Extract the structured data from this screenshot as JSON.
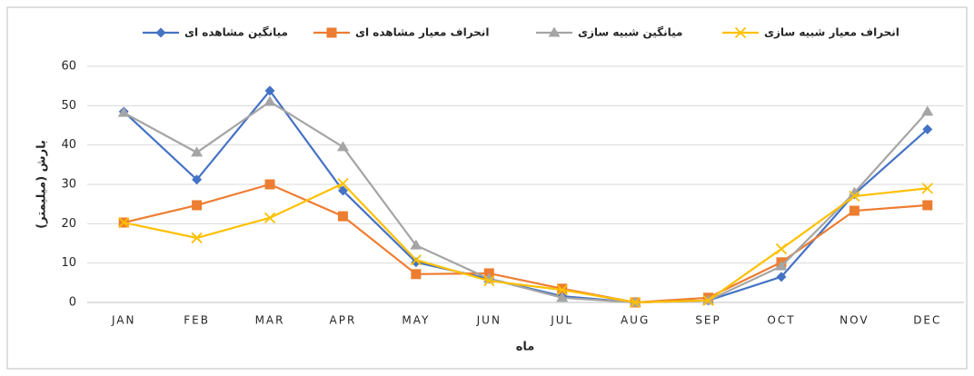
{
  "chart_data": {
    "type": "line",
    "x_label": "ماه",
    "y_label": "بارش (میلیمتر)",
    "categories": [
      "JAN",
      "FEB",
      "MAR",
      "APR",
      "MAY",
      "JUN",
      "JUL",
      "AUG",
      "SEP",
      "OCT",
      "NOV",
      "DEC"
    ],
    "series": [
      {
        "name": "میانگین مشاهده ای",
        "color": "#4472c4",
        "marker": "diamond",
        "values": [
          48.5,
          31.2,
          53.8,
          28.4,
          10.2,
          6.0,
          1.6,
          0,
          0.5,
          6.5,
          27.5,
          44
        ]
      },
      {
        "name": "انحراف معیار مشاهده  ای",
        "color": "#ed7d31",
        "marker": "square",
        "values": [
          20.3,
          24.7,
          30,
          21.9,
          7.2,
          7.4,
          3.5,
          0,
          1.2,
          10.2,
          23.3,
          24.7
        ]
      },
      {
        "name": "میانگین شبیه سازی",
        "color": "#a5a5a5",
        "marker": "triangle",
        "values": [
          48.2,
          38.1,
          51,
          39.5,
          14.5,
          6.0,
          1.2,
          0,
          0.5,
          9.2,
          27.9,
          48.5
        ]
      },
      {
        "name": "انحراف معیار شبیه سازی",
        "color": "#ffc000",
        "marker": "x",
        "values": [
          20.3,
          16.4,
          21.5,
          30.2,
          10.8,
          5.5,
          3.2,
          0,
          0.5,
          13.6,
          27,
          29
        ]
      }
    ],
    "ylim": [
      0,
      60
    ],
    "yticks": [
      0,
      10,
      20,
      30,
      40,
      50,
      60
    ],
    "grid": true,
    "legend": "top"
  }
}
